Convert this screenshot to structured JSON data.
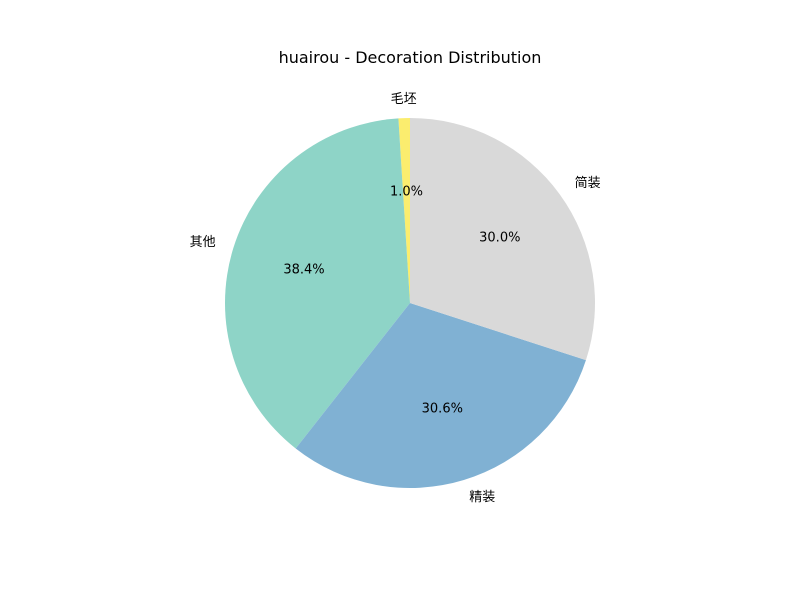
{
  "chart_data": {
    "type": "pie",
    "title": "huairou - Decoration Distribution",
    "start_angle": 90,
    "direction": "counterclockwise",
    "legend": "none",
    "slices": [
      {
        "label": "毛坯",
        "value": 1.0,
        "pct_label": "1.0%",
        "color": "#fbed6e"
      },
      {
        "label": "其他",
        "value": 38.4,
        "pct_label": "38.4%",
        "color": "#8ed4c7"
      },
      {
        "label": "精装",
        "value": 30.6,
        "pct_label": "30.6%",
        "color": "#80b1d3"
      },
      {
        "label": "简装",
        "value": 30.0,
        "pct_label": "30.0%",
        "color": "#d9d9d9"
      }
    ]
  }
}
